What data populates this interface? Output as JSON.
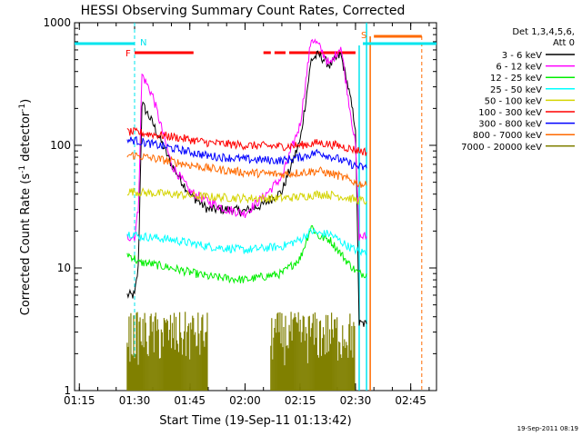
{
  "chart_data": {
    "type": "line",
    "title": "HESSI Observing Summary Count Rates, Corrected",
    "xlabel": "Start Time (19-Sep-11 01:13:42)",
    "ylabel_main": "Corrected Count Rate (s",
    "ylabel_sup1": "-1",
    "ylabel_mid": " detector",
    "ylabel_sup2": "-1",
    "ylabel_end": ")",
    "yscale": "log",
    "xlim": [
      "01:13:42",
      "02:52:00"
    ],
    "ylim": [
      1,
      1000
    ],
    "x_ticks": [
      "01:15",
      "01:30",
      "01:45",
      "02:00",
      "02:15",
      "02:30",
      "02:45"
    ],
    "y_ticks": [
      "1",
      "10",
      "100",
      "1000"
    ],
    "legend_title": [
      "Det 1,3,4,5,6,",
      "Att 0"
    ],
    "legend_position": "right",
    "footer_date": "19-Sep-2011 08:19",
    "flags": [
      {
        "label": "F",
        "color": "#ff0000"
      },
      {
        "label": "N",
        "color": "#00e5ee"
      },
      {
        "label": "S",
        "color": "#ff6a00"
      }
    ],
    "series": [
      {
        "name": "3 - 6 keV",
        "color": "#000000",
        "x": [
          "01:28",
          "01:29",
          "01:30",
          "01:31",
          "01:32",
          "01:35",
          "01:40",
          "01:45",
          "01:50",
          "01:55",
          "02:00",
          "02:05",
          "02:10",
          "02:15",
          "02:18",
          "02:20",
          "02:23",
          "02:26",
          "02:28",
          "02:30",
          "02:31",
          "02:33"
        ],
        "y": [
          6,
          6,
          6,
          10,
          220,
          150,
          70,
          40,
          30,
          30,
          29,
          33,
          42,
          110,
          500,
          550,
          450,
          550,
          300,
          140,
          3.5,
          3.5
        ]
      },
      {
        "name": "6 - 12 keV",
        "color": "#ff00ff",
        "x": [
          "01:28",
          "01:29",
          "01:30",
          "01:31",
          "01:32",
          "01:35",
          "01:40",
          "01:45",
          "01:50",
          "01:55",
          "02:00",
          "02:05",
          "02:10",
          "02:15",
          "02:18",
          "02:20",
          "02:23",
          "02:26",
          "02:28",
          "02:30",
          "02:31",
          "02:33"
        ],
        "y": [
          18,
          18,
          18,
          30,
          380,
          250,
          70,
          42,
          35,
          30,
          28,
          38,
          55,
          150,
          750,
          650,
          450,
          650,
          250,
          100,
          18,
          18
        ]
      },
      {
        "name": "12 - 25 keV",
        "color": "#00ee00",
        "x": [
          "01:28",
          "01:30",
          "01:31",
          "01:33",
          "01:40",
          "01:50",
          "02:00",
          "02:10",
          "02:15",
          "02:18",
          "02:20",
          "02:23",
          "02:28",
          "02:30",
          "02:31",
          "02:33"
        ],
        "y": [
          13,
          12,
          11,
          11,
          10,
          8.5,
          8,
          9,
          12,
          22,
          18,
          17,
          11,
          9.5,
          9,
          9
        ]
      },
      {
        "name": "25 - 50 keV",
        "color": "#00ffff",
        "x": [
          "01:28",
          "01:30",
          "01:31",
          "01:33",
          "01:40",
          "01:50",
          "02:00",
          "02:10",
          "02:15",
          "02:18",
          "02:20",
          "02:23",
          "02:28",
          "02:30",
          "02:31",
          "02:33"
        ],
        "y": [
          19,
          19,
          18,
          18,
          17,
          15,
          14,
          15,
          17,
          20,
          19,
          19,
          15,
          14,
          13.5,
          13.5
        ]
      },
      {
        "name": "50 - 100 keV",
        "color": "#d4d400",
        "x": [
          "01:28",
          "01:30",
          "01:33",
          "01:40",
          "01:50",
          "02:00",
          "02:10",
          "02:15",
          "02:20",
          "02:25",
          "02:30",
          "02:33"
        ],
        "y": [
          42,
          42,
          41,
          40,
          38,
          37,
          37,
          38,
          40,
          39,
          36,
          35
        ]
      },
      {
        "name": "100 - 300 keV",
        "color": "#ff0000",
        "x": [
          "01:28",
          "01:30",
          "01:33",
          "01:40",
          "01:50",
          "02:00",
          "02:10",
          "02:15",
          "02:20",
          "02:25",
          "02:30",
          "02:33"
        ],
        "y": [
          128,
          128,
          125,
          118,
          105,
          100,
          98,
          100,
          105,
          100,
          92,
          88
        ]
      },
      {
        "name": "300 - 800 keV",
        "color": "#0000ff",
        "x": [
          "01:28",
          "01:30",
          "01:33",
          "01:40",
          "01:50",
          "02:00",
          "02:10",
          "02:15",
          "02:20",
          "02:25",
          "02:30",
          "02:33"
        ],
        "y": [
          110,
          110,
          105,
          95,
          82,
          77,
          75,
          80,
          88,
          78,
          68,
          65
        ]
      },
      {
        "name": "800 - 7000 keV",
        "color": "#ff6a00",
        "x": [
          "01:28",
          "01:30",
          "01:33",
          "01:40",
          "01:50",
          "02:00",
          "02:10",
          "02:15",
          "02:20",
          "02:25",
          "02:30",
          "02:33"
        ],
        "y": [
          83,
          83,
          80,
          74,
          65,
          60,
          58,
          60,
          62,
          57,
          50,
          47
        ]
      },
      {
        "name": "7000 - 20000 keV",
        "color": "#808000",
        "x": [
          "01:28",
          "01:33",
          "01:40",
          "01:45",
          "01:50",
          "02:07",
          "02:12",
          "02:18",
          "02:24",
          "02:30"
        ],
        "y": [
          2,
          2,
          2,
          2,
          1.8,
          2,
          2,
          2,
          2,
          2
        ]
      }
    ]
  }
}
